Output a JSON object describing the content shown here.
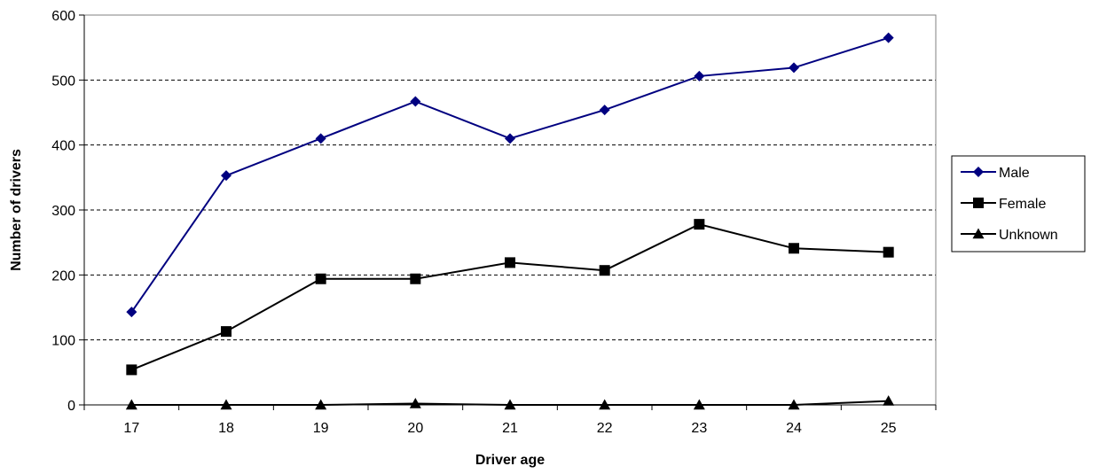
{
  "chart_data": {
    "type": "line",
    "title": "",
    "xlabel": "Driver age",
    "ylabel": "Number of drivers",
    "categories": [
      "17",
      "18",
      "19",
      "20",
      "21",
      "22",
      "23",
      "24",
      "25"
    ],
    "ylim": [
      0,
      600
    ],
    "yticks": [
      "0",
      "100",
      "200",
      "300",
      "400",
      "500",
      "600"
    ],
    "grid": "horizontal dashed",
    "legend_position": "right",
    "series": [
      {
        "name": "Male",
        "values": [
          143,
          353,
          410,
          467,
          410,
          454,
          506,
          519,
          565
        ],
        "color": "#000080",
        "marker": "diamond"
      },
      {
        "name": "Female",
        "values": [
          54,
          113,
          194,
          194,
          219,
          207,
          278,
          241,
          235
        ],
        "color": "#000000",
        "marker": "square"
      },
      {
        "name": "Unknown",
        "values": [
          0,
          0,
          0,
          2,
          0,
          0,
          0,
          0,
          6
        ],
        "color": "#000000",
        "marker": "triangle"
      }
    ]
  }
}
